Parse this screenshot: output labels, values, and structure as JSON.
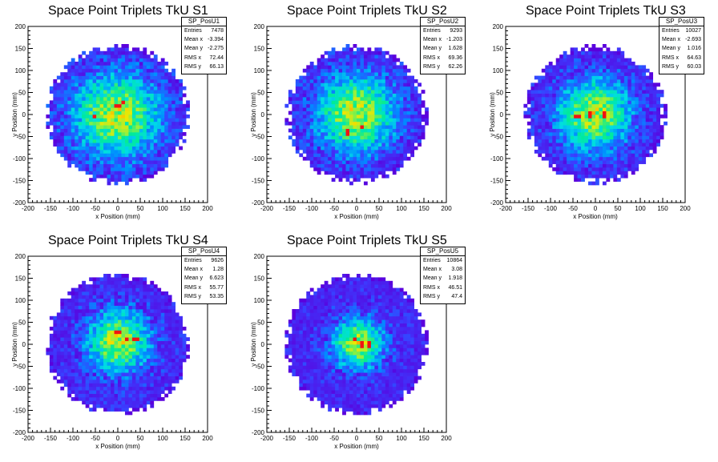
{
  "chart_data": [
    {
      "type": "heatmap",
      "title": "Space Point Triplets TkU S1",
      "xlabel": "x Position (mm)",
      "ylabel": "y Position (mm)",
      "xlim": [
        -200,
        200
      ],
      "ylim": [
        -200,
        200
      ],
      "xticks": [
        "-200",
        "-150",
        "-100",
        "-50",
        "0",
        "50",
        "100",
        "150",
        "200"
      ],
      "yticks": [
        "-200",
        "-150",
        "-100",
        "-50",
        "0",
        "50",
        "100",
        "150",
        "200"
      ],
      "distribution": {
        "radius": 160,
        "sigma": 72,
        "mean_x": -3.394,
        "mean_y": -2.275,
        "hotspots": [
          [
            -50,
            -3
          ],
          [
            0,
            20
          ],
          [
            10,
            25
          ]
        ]
      },
      "stats": {
        "name": "SP_PosU1",
        "rows": [
          {
            "label": "Entries",
            "value": "7478"
          },
          {
            "label": "Mean x",
            "value": "-3.394"
          },
          {
            "label": "Mean y",
            "value": "-2.275"
          },
          {
            "label": "RMS x",
            "value": "72.44"
          },
          {
            "label": "RMS y",
            "value": "66.13"
          }
        ]
      }
    },
    {
      "type": "heatmap",
      "title": "Space Point Triplets TkU S2",
      "xlabel": "x Position (mm)",
      "ylabel": "y Position (mm)",
      "xlim": [
        -200,
        200
      ],
      "ylim": [
        -200,
        200
      ],
      "xticks": [
        "-200",
        "-150",
        "-100",
        "-50",
        "0",
        "50",
        "100",
        "150",
        "200"
      ],
      "yticks": [
        "-200",
        "-150",
        "-100",
        "-50",
        "0",
        "50",
        "100",
        "150",
        "200"
      ],
      "distribution": {
        "radius": 158,
        "sigma": 66,
        "mean_x": -1.203,
        "mean_y": 1.628,
        "hotspots": [
          [
            10,
            -25
          ],
          [
            -20,
            -40
          ]
        ]
      },
      "stats": {
        "name": "SP_PosU2",
        "rows": [
          {
            "label": "Entries",
            "value": "9293"
          },
          {
            "label": "Mean x",
            "value": "-1.203"
          },
          {
            "label": "Mean y",
            "value": "1.628"
          },
          {
            "label": "RMS x",
            "value": "69.36"
          },
          {
            "label": "RMS y",
            "value": "62.26"
          }
        ]
      }
    },
    {
      "type": "heatmap",
      "title": "Space Point Triplets TkU S3",
      "xlabel": "x Position (mm)",
      "ylabel": "y Position (mm)",
      "xlim": [
        -200,
        200
      ],
      "ylim": [
        -200,
        200
      ],
      "xticks": [
        "-200",
        "-150",
        "-100",
        "-50",
        "0",
        "50",
        "100",
        "150",
        "200"
      ],
      "yticks": [
        "-200",
        "-150",
        "-100",
        "-50",
        "0",
        "50",
        "100",
        "150",
        "200"
      ],
      "distribution": {
        "radius": 158,
        "sigma": 60,
        "mean_x": -2.693,
        "mean_y": 1.016,
        "hotspots": [
          [
            -15,
            0
          ],
          [
            20,
            0
          ],
          [
            -40,
            -5
          ]
        ]
      },
      "stats": {
        "name": "SP_PosU3",
        "rows": [
          {
            "label": "Entries",
            "value": "10027"
          },
          {
            "label": "Mean x",
            "value": "-2.693"
          },
          {
            "label": "Mean y",
            "value": "1.016"
          },
          {
            "label": "RMS x",
            "value": "64.63"
          },
          {
            "label": "RMS y",
            "value": "60.03"
          }
        ]
      }
    },
    {
      "type": "heatmap",
      "title": "Space Point Triplets TkU S4",
      "xlabel": "x Position (mm)",
      "ylabel": "y Position (mm)",
      "xlim": [
        -200,
        200
      ],
      "ylim": [
        -200,
        200
      ],
      "xticks": [
        "-200",
        "-150",
        "-100",
        "-50",
        "0",
        "50",
        "100",
        "150",
        "200"
      ],
      "yticks": [
        "-200",
        "-150",
        "-100",
        "-50",
        "0",
        "50",
        "100",
        "150",
        "200"
      ],
      "distribution": {
        "radius": 160,
        "sigma": 52,
        "mean_x": 1.28,
        "mean_y": 6.623,
        "hotspots": [
          [
            0,
            25
          ],
          [
            20,
            15
          ],
          [
            40,
            15
          ]
        ]
      },
      "stats": {
        "name": "SP_PosU4",
        "rows": [
          {
            "label": "Entries",
            "value": "9626"
          },
          {
            "label": "Mean x",
            "value": "1.28"
          },
          {
            "label": "Mean y",
            "value": "6.623"
          },
          {
            "label": "RMS x",
            "value": "55.77"
          },
          {
            "label": "RMS y",
            "value": "53.35"
          }
        ]
      }
    },
    {
      "type": "heatmap",
      "title": "Space Point Triplets TkU S5",
      "xlabel": "x Position (mm)",
      "ylabel": "y Position (mm)",
      "xlim": [
        -200,
        200
      ],
      "ylim": [
        -200,
        200
      ],
      "xticks": [
        "-200",
        "-150",
        "-100",
        "-50",
        "0",
        "50",
        "100",
        "150",
        "200"
      ],
      "yticks": [
        "-200",
        "-150",
        "-100",
        "-50",
        "0",
        "50",
        "100",
        "150",
        "200"
      ],
      "distribution": {
        "radius": 160,
        "sigma": 42,
        "mean_x": 3.08,
        "mean_y": 1.918,
        "hotspots": [
          [
            10,
            0
          ],
          [
            25,
            0
          ],
          [
            -5,
            10
          ]
        ]
      },
      "stats": {
        "name": "SP_PosU5",
        "rows": [
          {
            "label": "Entries",
            "value": "10864"
          },
          {
            "label": "Mean x",
            "value": "3.08"
          },
          {
            "label": "Mean y",
            "value": "1.918"
          },
          {
            "label": "RMS x",
            "value": "46.51"
          },
          {
            "label": "RMS y",
            "value": "47.4"
          }
        ]
      }
    }
  ]
}
